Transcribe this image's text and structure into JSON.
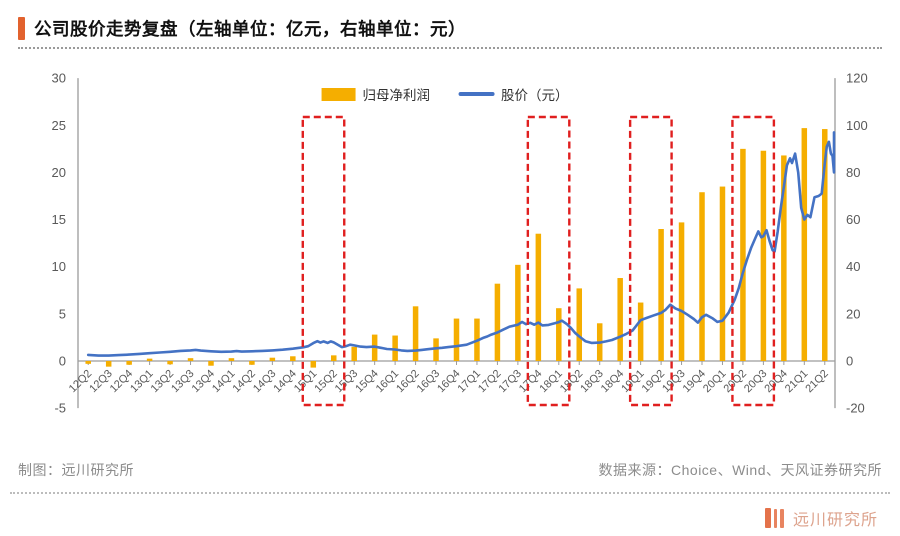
{
  "title": {
    "text": "公司股价走势复盘（左轴单位：亿元，右轴单位：元）"
  },
  "legend": {
    "bar_label": "归母净利润",
    "line_label": "股价（元）"
  },
  "colors": {
    "bar": "#f5ae00",
    "line": "#4472c4",
    "highlight": "#e01f1f",
    "axis": "#9c9c9c",
    "tick_text": "#595959",
    "accent": "#e2622e"
  },
  "chart_data": {
    "type": "bar+line combo",
    "title": "公司股价走势复盘",
    "left_axis": {
      "unit": "亿元",
      "range": [
        -5,
        30
      ],
      "ticks": [
        30,
        25,
        20,
        15,
        10,
        5,
        0,
        -5
      ]
    },
    "right_axis": {
      "unit": "元",
      "range": [
        -20,
        120
      ],
      "ticks": [
        120,
        100,
        80,
        60,
        40,
        20,
        0,
        -20
      ]
    },
    "grid": "off",
    "legend_position": "top-center",
    "categories": [
      "12Q2",
      "12Q3",
      "12Q4",
      "13Q1",
      "13Q2",
      "13Q3",
      "13Q4",
      "14Q1",
      "14Q2",
      "14Q3",
      "14Q4",
      "15Q1",
      "15Q2",
      "15Q3",
      "15Q4",
      "16Q1",
      "16Q2",
      "16Q3",
      "16Q4",
      "17Q1",
      "17Q2",
      "17Q3",
      "17Q4",
      "18Q1",
      "18Q2",
      "18Q3",
      "18Q4",
      "19Q1",
      "19Q2",
      "19Q3",
      "19Q4",
      "20Q1",
      "20Q2",
      "20Q3",
      "20Q4",
      "21Q1",
      "21Q2"
    ],
    "series": [
      {
        "name": "归母净利润",
        "type": "bar",
        "axis": "left",
        "values": [
          -0.3,
          -0.6,
          -0.4,
          0.25,
          -0.35,
          0.3,
          -0.5,
          0.3,
          -0.4,
          0.35,
          0.5,
          -0.7,
          0.6,
          1.5,
          2.8,
          2.7,
          5.8,
          2.4,
          4.5,
          4.5,
          8.2,
          10.2,
          13.5,
          5.6,
          7.7,
          4.0,
          8.8,
          6.2,
          14.0,
          14.7,
          17.9,
          18.5,
          22.5,
          22.3,
          21.8,
          24.7,
          24.6
        ]
      },
      {
        "name": "股价（元）",
        "type": "line",
        "axis": "right",
        "points": [
          [
            0,
            2.6
          ],
          [
            0.5,
            2.3
          ],
          [
            1,
            2.3
          ],
          [
            1.5,
            2.5
          ],
          [
            2,
            2.7
          ],
          [
            2.5,
            3.0
          ],
          [
            3,
            3.3
          ],
          [
            3.5,
            3.6
          ],
          [
            4,
            3.9
          ],
          [
            4.5,
            4.3
          ],
          [
            5,
            4.5
          ],
          [
            5.25,
            4.7
          ],
          [
            5.5,
            4.4
          ],
          [
            6,
            4.1
          ],
          [
            6.5,
            3.9
          ],
          [
            7,
            4.0
          ],
          [
            7.25,
            4.2
          ],
          [
            7.5,
            4.0
          ],
          [
            8,
            4.1
          ],
          [
            8.5,
            4.3
          ],
          [
            9,
            4.5
          ],
          [
            9.5,
            4.8
          ],
          [
            10,
            5.2
          ],
          [
            10.5,
            5.8
          ],
          [
            10.75,
            6.3
          ],
          [
            11,
            7.6
          ],
          [
            11.2,
            8.4
          ],
          [
            11.35,
            7.8
          ],
          [
            11.5,
            8.3
          ],
          [
            11.7,
            7.7
          ],
          [
            11.85,
            8.3
          ],
          [
            12,
            7.9
          ],
          [
            12.2,
            6.9
          ],
          [
            12.4,
            5.9
          ],
          [
            12.6,
            6.3
          ],
          [
            12.8,
            6.9
          ],
          [
            13,
            6.6
          ],
          [
            13.3,
            6.1
          ],
          [
            13.6,
            5.9
          ],
          [
            14,
            6.1
          ],
          [
            14.3,
            5.6
          ],
          [
            14.6,
            5.1
          ],
          [
            15,
            4.9
          ],
          [
            15.3,
            4.5
          ],
          [
            15.6,
            4.3
          ],
          [
            16,
            4.4
          ],
          [
            16.3,
            4.7
          ],
          [
            16.6,
            5.0
          ],
          [
            17,
            5.4
          ],
          [
            17.3,
            5.6
          ],
          [
            17.6,
            5.9
          ],
          [
            18,
            6.3
          ],
          [
            18.5,
            6.9
          ],
          [
            19,
            8.6
          ],
          [
            19.3,
            9.8
          ],
          [
            19.5,
            10.4
          ],
          [
            19.7,
            11.2
          ],
          [
            20,
            12.1
          ],
          [
            20.3,
            13.4
          ],
          [
            20.6,
            14.6
          ],
          [
            21,
            15.4
          ],
          [
            21.2,
            16.6
          ],
          [
            21.4,
            15.6
          ],
          [
            21.6,
            16.2
          ],
          [
            21.8,
            15.4
          ],
          [
            22,
            16.3
          ],
          [
            22.2,
            15.1
          ],
          [
            22.5,
            15.3
          ],
          [
            22.8,
            16.0
          ],
          [
            23,
            16.5
          ],
          [
            23.15,
            17.1
          ],
          [
            23.4,
            15.6
          ],
          [
            23.6,
            13.9
          ],
          [
            23.8,
            11.9
          ],
          [
            24,
            10.4
          ],
          [
            24.3,
            8.4
          ],
          [
            24.6,
            7.7
          ],
          [
            25,
            7.8
          ],
          [
            25.3,
            8.3
          ],
          [
            25.6,
            8.9
          ],
          [
            26,
            10.3
          ],
          [
            26.3,
            11.5
          ],
          [
            26.6,
            12.9
          ],
          [
            27,
            17.3
          ],
          [
            27.3,
            18.3
          ],
          [
            27.6,
            19.2
          ],
          [
            28,
            20.4
          ],
          [
            28.2,
            21.6
          ],
          [
            28.45,
            23.9
          ],
          [
            28.7,
            22.3
          ],
          [
            29,
            21.2
          ],
          [
            29.3,
            19.6
          ],
          [
            29.6,
            17.8
          ],
          [
            29.8,
            16.3
          ],
          [
            30,
            18.6
          ],
          [
            30.2,
            19.6
          ],
          [
            30.5,
            18.2
          ],
          [
            30.75,
            16.6
          ],
          [
            31,
            17.1
          ],
          [
            31.3,
            20.5
          ],
          [
            31.6,
            26
          ],
          [
            31.8,
            31
          ],
          [
            32,
            37.5
          ],
          [
            32.2,
            43
          ],
          [
            32.4,
            48
          ],
          [
            32.6,
            52
          ],
          [
            32.75,
            55
          ],
          [
            32.9,
            52.5
          ],
          [
            33,
            53
          ],
          [
            33.15,
            55.5
          ],
          [
            33.3,
            51
          ],
          [
            33.45,
            47
          ],
          [
            33.55,
            46.5
          ],
          [
            33.7,
            55
          ],
          [
            33.85,
            65
          ],
          [
            34,
            74
          ],
          [
            34.15,
            83
          ],
          [
            34.3,
            86
          ],
          [
            34.4,
            84
          ],
          [
            34.55,
            88
          ],
          [
            34.7,
            80
          ],
          [
            34.85,
            65
          ],
          [
            35,
            60
          ],
          [
            35.15,
            62
          ],
          [
            35.3,
            61
          ],
          [
            35.5,
            69.5
          ],
          [
            35.7,
            70
          ],
          [
            35.85,
            71
          ],
          [
            36,
            84
          ],
          [
            36.1,
            91
          ],
          [
            36.2,
            93
          ],
          [
            36.3,
            88
          ],
          [
            36.38,
            87
          ],
          [
            36.45,
            80
          ],
          [
            36.52,
            97
          ],
          [
            36.55,
            88
          ]
        ]
      }
    ],
    "highlights": [
      [
        "15Q1",
        "15Q2"
      ],
      [
        "17Q4",
        "18Q1"
      ],
      [
        "19Q1",
        "19Q2"
      ],
      [
        "20Q2",
        "20Q3"
      ]
    ]
  },
  "footer": {
    "left": "制图：远川研究所",
    "right": "数据来源：Choice、Wind、天风证券研究所",
    "logo_text": "远川研究所"
  }
}
